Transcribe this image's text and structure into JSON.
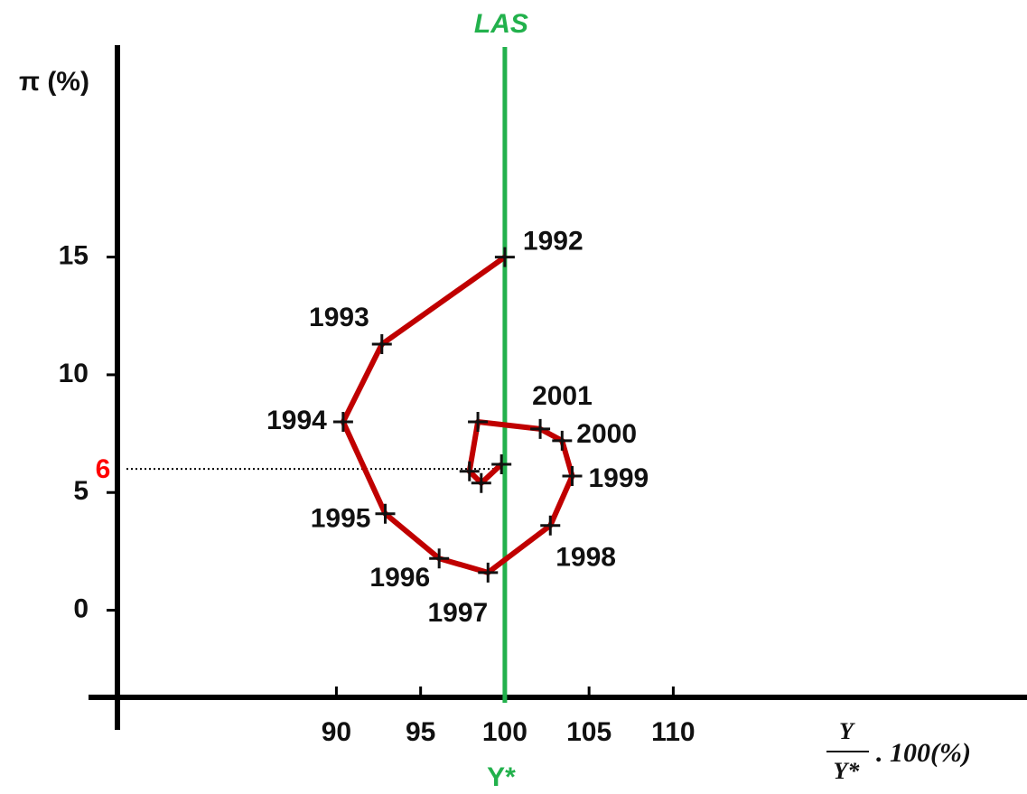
{
  "chart_data": {
    "type": "line",
    "y_label": "π (%)",
    "x_label_numerator": "Y",
    "x_label_denominator": "Y*",
    "x_label_suffix": ". 100(%)",
    "reference_line": {
      "value": 100,
      "label": "LAS",
      "bottom_label": "Y*",
      "color": "#22b14c"
    },
    "guide_line": {
      "value": 6,
      "label": "6",
      "color": "#ff0000"
    },
    "x": [
      100,
      92.7,
      90.4,
      92.9,
      96.1,
      99.0,
      102.7,
      104.0,
      103.4,
      102.1,
      98.4,
      97.9,
      98.6,
      99.8
    ],
    "values": [
      15,
      11.3,
      8.0,
      4.1,
      2.2,
      1.6,
      3.6,
      5.7,
      7.2,
      7.7,
      8.0,
      5.9,
      5.4,
      6.2
    ],
    "point_labels": [
      "1992",
      "1993",
      "1994",
      "1995",
      "1996",
      "1997",
      "1998",
      "1999",
      "2000",
      "2001",
      null,
      null,
      null,
      null
    ],
    "color": "#c00000",
    "xlim": [
      77,
      131
    ],
    "ylim": [
      -3.7,
      24
    ],
    "xticks": [
      90,
      95,
      100,
      105,
      110
    ],
    "yticks": [
      0,
      5,
      10,
      15
    ]
  }
}
